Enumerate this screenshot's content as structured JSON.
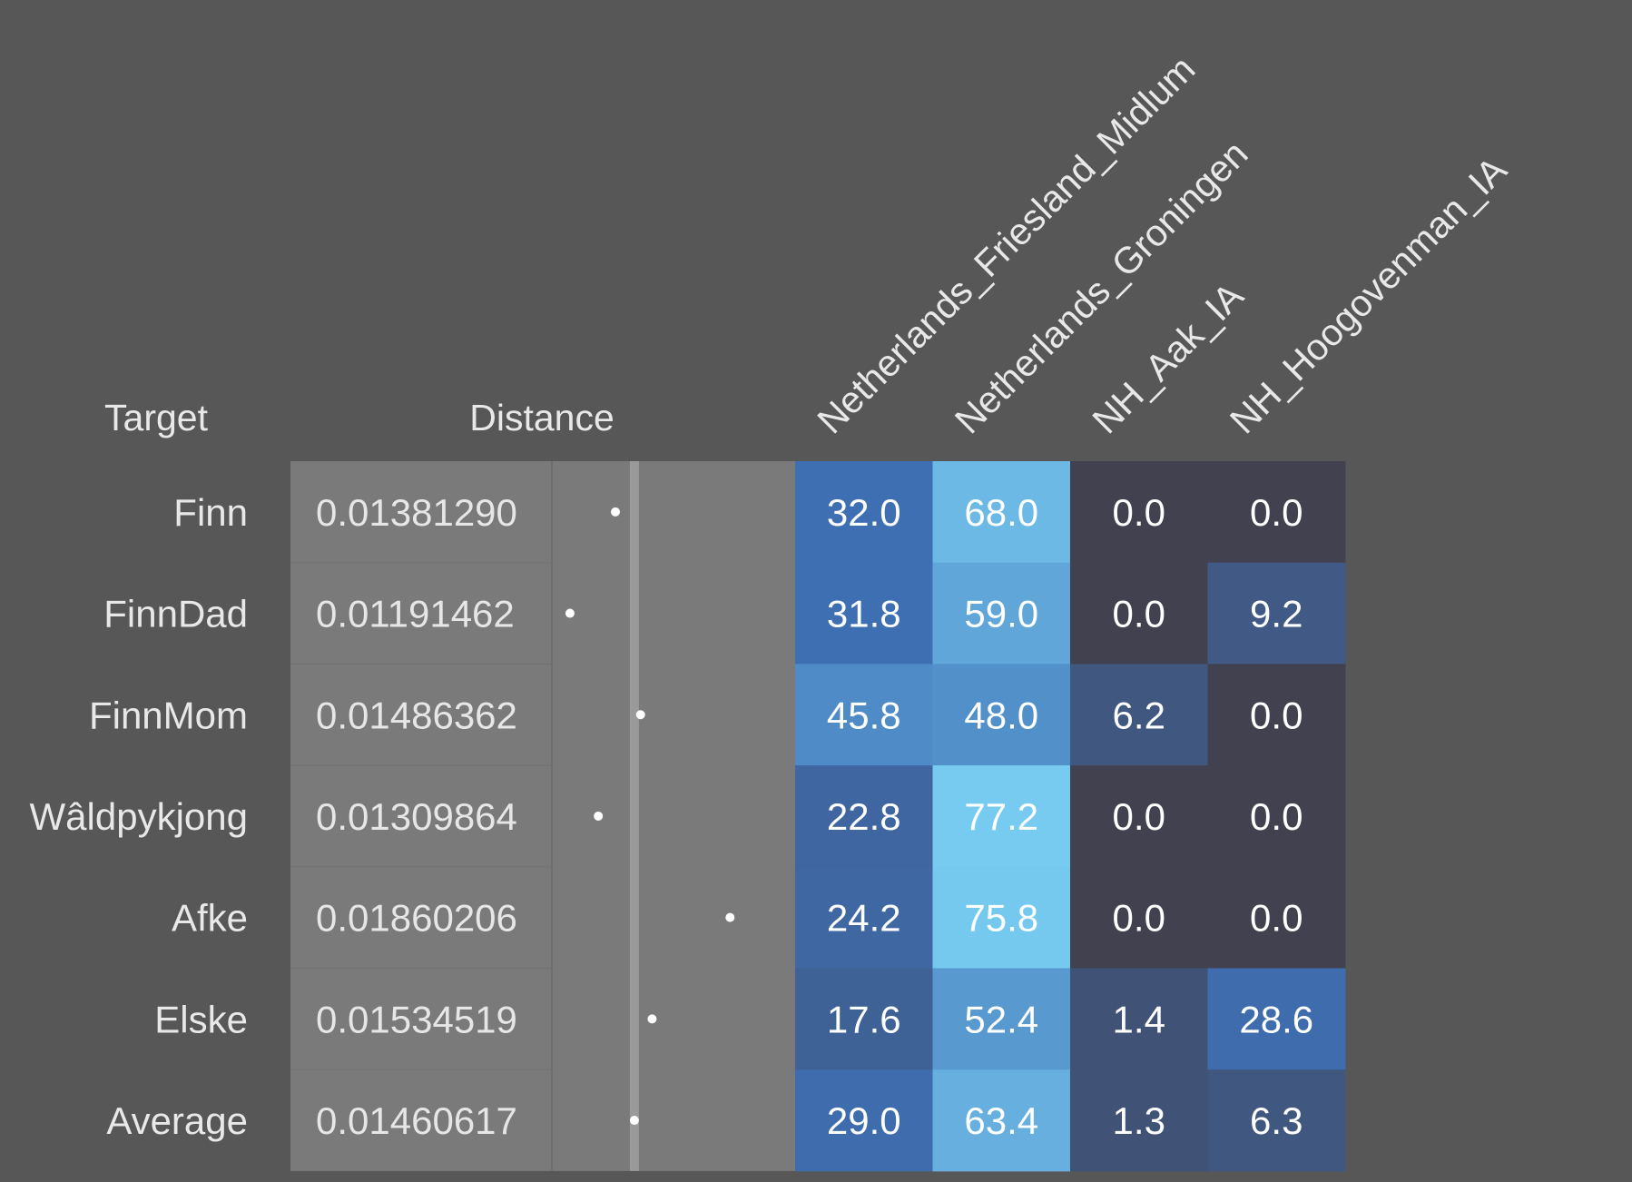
{
  "header": {
    "target_label": "Target",
    "distance_label": "Distance"
  },
  "colors": {
    "background": "#575757",
    "distance_panel": "#7a7a7a",
    "distance_divider": "#6e6e6e",
    "reference_line": "#9a9a9a",
    "dot": "#ffffff",
    "header_text": "#e8e8e8",
    "cell_text": "#ffffff",
    "zero_cell": "#42414f",
    "scale_low": "#42414f",
    "scale_mid": "#3e6fb3",
    "scale_high": "#78cdf2"
  },
  "chart_data": {
    "type": "table",
    "columns": [
      "Netherlands_Friesland_Midlum",
      "Netherlands_Groningen",
      "NH_Aak_IA",
      "NH_Hoogovenman_IA"
    ],
    "rows": [
      {
        "target": "Finn",
        "distance": "0.01381290",
        "values": [
          32.0,
          68.0,
          0.0,
          0.0
        ]
      },
      {
        "target": "FinnDad",
        "distance": "0.01191462",
        "values": [
          31.8,
          59.0,
          0.0,
          9.2
        ]
      },
      {
        "target": "FinnMom",
        "distance": "0.01486362",
        "values": [
          45.8,
          48.0,
          6.2,
          0.0
        ]
      },
      {
        "target": "Wâldpykjong",
        "distance": "0.01309864",
        "values": [
          22.8,
          77.2,
          0.0,
          0.0
        ]
      },
      {
        "target": "Afke",
        "distance": "0.01860206",
        "values": [
          24.2,
          75.8,
          0.0,
          0.0
        ]
      },
      {
        "target": "Elske",
        "distance": "0.01534519",
        "values": [
          17.6,
          52.4,
          1.4,
          28.6
        ]
      },
      {
        "target": "Average",
        "distance": "0.01460617",
        "values": [
          29.0,
          63.4,
          1.3,
          6.3
        ]
      }
    ],
    "distance_reference": 0.01460617,
    "distance_range": [
      0.0115,
      0.0195
    ],
    "value_range": [
      0,
      100
    ]
  }
}
